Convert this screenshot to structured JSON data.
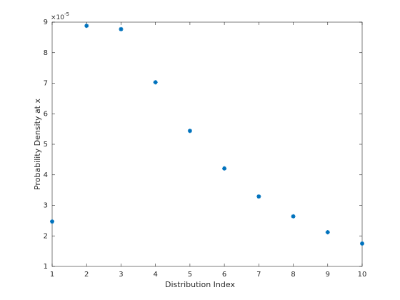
{
  "chart_data": {
    "type": "scatter",
    "x_label": "Distribution Index",
    "y_label": "Probability Density at x",
    "y_multiplier": {
      "base": "×10",
      "exponent": "-5"
    },
    "x": [
      1,
      2,
      3,
      4,
      5,
      6,
      7,
      8,
      9,
      10
    ],
    "series": [
      {
        "color": "#0072bd",
        "values": [
          2.47,
          8.88,
          8.77,
          7.03,
          5.44,
          4.21,
          3.29,
          2.64,
          2.12,
          1.75
        ]
      }
    ],
    "xlim": [
      1,
      10
    ],
    "xticks": [
      1,
      2,
      3,
      4,
      5,
      6,
      7,
      8,
      9,
      10
    ],
    "ylim": [
      1,
      9
    ],
    "yticks": [
      1,
      2,
      3,
      4,
      5,
      6,
      7,
      8,
      9
    ],
    "grid": false
  }
}
